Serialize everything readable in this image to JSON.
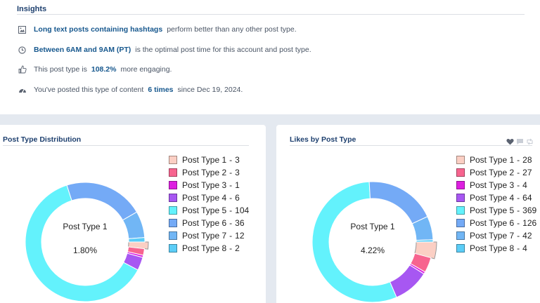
{
  "insights": {
    "title": "Insights",
    "rows": [
      {
        "icon": "image-icon",
        "highlight": "Long text posts containing hashtags",
        "text": "perform better than any other post type."
      },
      {
        "icon": "clock-icon",
        "highlight": "Between 6AM and 9AM (PT)",
        "text": "is the optimal post time for this account and post type."
      },
      {
        "icon": "thumbs-up-icon",
        "prefix": "This post type is",
        "highlight": "108.2%",
        "text": "more engaging."
      },
      {
        "icon": "speedometer-icon",
        "prefix": "You've posted this type of content",
        "highlight": "6 times",
        "text": "since Dec 19, 2024."
      }
    ]
  },
  "cards": {
    "distribution": {
      "title": "Post Type Distribution",
      "center_label": "Post Type 1",
      "center_value": "1.80%"
    },
    "likes": {
      "title": "Likes by Post Type",
      "center_label": "Post Type 1",
      "center_value": "4.22%",
      "action_icons": [
        "heart-icon",
        "comment-icon",
        "retweet-icon"
      ]
    }
  },
  "chart_data": [
    {
      "type": "pie",
      "variant": "donut",
      "title": "Post Type Distribution",
      "categories": [
        "Post Type 1",
        "Post Type 2",
        "Post Type 3",
        "Post Type 4",
        "Post Type 5",
        "Post Type 6",
        "Post Type 7",
        "Post Type 8"
      ],
      "values": [
        3,
        3,
        1,
        6,
        104,
        36,
        12,
        2
      ],
      "colors": [
        "#fbcfc4",
        "#f7648f",
        "#dd1fe0",
        "#a757f2",
        "#63f2fc",
        "#74aaf6",
        "#71b6f5",
        "#5bcdf7"
      ],
      "highlighted": "Post Type 1",
      "legend_position": "right"
    },
    {
      "type": "pie",
      "variant": "donut",
      "title": "Likes by Post Type",
      "categories": [
        "Post Type 1",
        "Post Type 2",
        "Post Type 3",
        "Post Type 4",
        "Post Type 5",
        "Post Type 6",
        "Post Type 7",
        "Post Type 8"
      ],
      "values": [
        28,
        27,
        4,
        64,
        369,
        126,
        42,
        4
      ],
      "colors": [
        "#fbcfc4",
        "#f7648f",
        "#dd1fe0",
        "#a757f2",
        "#63f2fc",
        "#74aaf6",
        "#71b6f5",
        "#5bcdf7"
      ],
      "highlighted": "Post Type 1",
      "legend_position": "right"
    }
  ]
}
